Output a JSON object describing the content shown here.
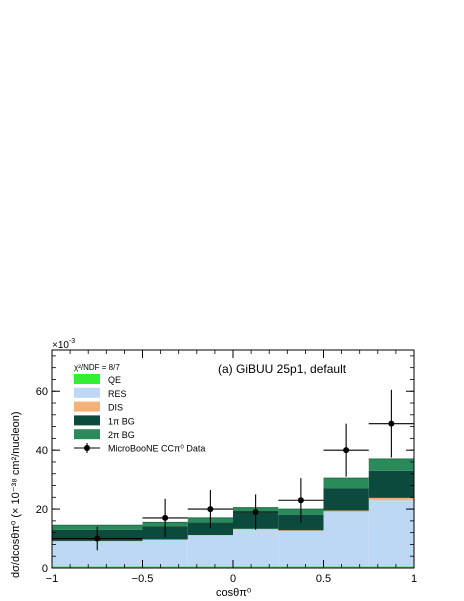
{
  "chart_data": {
    "type": "bar",
    "subtype": "stacked-histogram-with-data-points",
    "title": "(a) GiBUU 25p1, default",
    "xlabel": "cosθπ⁰",
    "ylabel": "dσ/dcosθπ⁰ (× 10⁻³⁸ cm²/nucleon)",
    "y_multiplier": "×10",
    "y_multiplier_exp": "-3",
    "chi2_ndf": "χ²/NDF = 8/7",
    "xlim": [
      -1,
      1
    ],
    "ylim": [
      0,
      0.074
    ],
    "x_ticks": [
      -1,
      -0.5,
      0,
      0.5,
      1
    ],
    "x_tick_labels": [
      "−1",
      "−0.5",
      "0",
      "0.5",
      "1"
    ],
    "y_ticks": [
      0,
      0.02,
      0.04,
      0.06
    ],
    "y_tick_labels": [
      "0",
      "20",
      "40",
      "60"
    ],
    "bin_edges": [
      -1,
      -0.5,
      -0.25,
      0,
      0.25,
      0.5,
      0.75,
      1
    ],
    "stack_series": [
      {
        "name": "QE",
        "color": "#33ee33",
        "values": [
          0.0005,
          0.0005,
          0.0005,
          0.0005,
          0.0005,
          0.0005,
          0.0005
        ]
      },
      {
        "name": "RES",
        "color": "#bcd8f4",
        "values": [
          0.0085,
          0.009,
          0.0105,
          0.0125,
          0.012,
          0.0185,
          0.0225
        ]
      },
      {
        "name": "DIS",
        "color": "#f4b27a",
        "values": [
          0.0002,
          0.0002,
          0.0002,
          0.0003,
          0.0003,
          0.0005,
          0.0008
        ]
      },
      {
        "name": "1π BG",
        "color": "#0b4a3c",
        "values": [
          0.0038,
          0.0045,
          0.0043,
          0.0054,
          0.0052,
          0.0075,
          0.0092
        ]
      },
      {
        "name": "2π BG",
        "color": "#2a8a5a",
        "values": [
          0.0015,
          0.0013,
          0.0015,
          0.0018,
          0.002,
          0.0035,
          0.004
        ]
      }
    ],
    "data_series": {
      "name": "MicroBooNE CCπ⁰ Data",
      "x": [
        -0.75,
        -0.375,
        -0.125,
        0.125,
        0.375,
        0.625,
        0.875
      ],
      "xerr": [
        0.25,
        0.125,
        0.125,
        0.125,
        0.125,
        0.125,
        0.125
      ],
      "y": [
        0.01,
        0.017,
        0.02,
        0.019,
        0.023,
        0.04,
        0.049
      ],
      "yerr": [
        0.004,
        0.0065,
        0.0065,
        0.006,
        0.0075,
        0.009,
        0.0115
      ]
    },
    "legend": {
      "placement": "top-left",
      "entries": [
        "QE",
        "RES",
        "DIS",
        "1π BG",
        "2π BG",
        "MicroBooNE CCπ⁰ Data"
      ]
    },
    "grid": false
  }
}
